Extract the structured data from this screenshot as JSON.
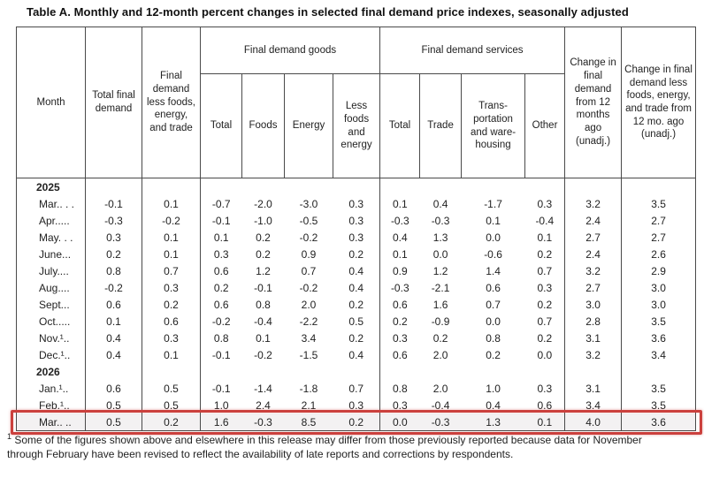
{
  "title": "Table A. Monthly and 12-month percent changes in selected final demand price indexes, seasonally adjusted",
  "table": {
    "header": {
      "month": "Month",
      "total_final_demand": "Total final demand",
      "less_foods_energy_trade": "Final demand less foods, energy, and trade",
      "goods_group": "Final demand goods",
      "services_group": "Final demand services",
      "goods_cols": [
        "Total",
        "Foods",
        "Energy",
        "Less foods and energy"
      ],
      "services_cols": [
        "Total",
        "Trade",
        "Trans­portation and ware­housing",
        "Other"
      ],
      "change_12mo": "Change in final demand from 12 months ago (unadj.)",
      "change_12mo_less": "Change in final demand less foods, energy, and trade from 12 mo. ago (unadj.)"
    },
    "rows": [
      {
        "type": "year",
        "label": "2025"
      },
      {
        "type": "data",
        "month": "Mar.. . .",
        "values": [
          "-0.1",
          "0.1",
          "-0.7",
          "-2.0",
          "-3.0",
          "0.3",
          "0.1",
          "0.4",
          "-1.7",
          "0.3",
          "3.2",
          "3.5"
        ]
      },
      {
        "type": "data",
        "month": "Apr.....",
        "values": [
          "-0.3",
          "-0.2",
          "-0.1",
          "-1.0",
          "-0.5",
          "0.3",
          "-0.3",
          "-0.3",
          "0.1",
          "-0.4",
          "2.4",
          "2.7"
        ]
      },
      {
        "type": "data",
        "month": "May. . .",
        "values": [
          "0.3",
          "0.1",
          "0.1",
          "0.2",
          "-0.2",
          "0.3",
          "0.4",
          "1.3",
          "0.0",
          "0.1",
          "2.7",
          "2.7"
        ]
      },
      {
        "type": "data",
        "month": "June...",
        "values": [
          "0.2",
          "0.1",
          "0.3",
          "0.2",
          "0.9",
          "0.2",
          "0.1",
          "0.0",
          "-0.6",
          "0.2",
          "2.4",
          "2.6"
        ]
      },
      {
        "type": "data",
        "month": "July....",
        "values": [
          "0.8",
          "0.7",
          "0.6",
          "1.2",
          "0.7",
          "0.4",
          "0.9",
          "1.2",
          "1.4",
          "0.7",
          "3.2",
          "2.9"
        ]
      },
      {
        "type": "data",
        "month": "Aug....",
        "values": [
          "-0.2",
          "0.3",
          "0.2",
          "-0.1",
          "-0.2",
          "0.4",
          "-0.3",
          "-2.1",
          "0.6",
          "0.3",
          "2.7",
          "3.0"
        ]
      },
      {
        "type": "data",
        "month": "Sept...",
        "values": [
          "0.6",
          "0.2",
          "0.6",
          "0.8",
          "2.0",
          "0.2",
          "0.6",
          "1.6",
          "0.7",
          "0.2",
          "3.0",
          "3.0"
        ]
      },
      {
        "type": "data",
        "month": "Oct.....",
        "values": [
          "0.1",
          "0.6",
          "-0.2",
          "-0.4",
          "-2.2",
          "0.5",
          "0.2",
          "-0.9",
          "0.0",
          "0.7",
          "2.8",
          "3.5"
        ]
      },
      {
        "type": "data",
        "month": "Nov.¹..",
        "values": [
          "0.4",
          "0.3",
          "0.8",
          "0.1",
          "3.4",
          "0.2",
          "0.3",
          "0.2",
          "0.8",
          "0.2",
          "3.1",
          "3.6"
        ]
      },
      {
        "type": "data",
        "month": "Dec.¹..",
        "values": [
          "0.4",
          "0.1",
          "-0.1",
          "-0.2",
          "-1.5",
          "0.4",
          "0.6",
          "2.0",
          "0.2",
          "0.0",
          "3.2",
          "3.4"
        ]
      },
      {
        "type": "year",
        "label": "2026"
      },
      {
        "type": "data",
        "month": "Jan.¹..",
        "values": [
          "0.6",
          "0.5",
          "-0.1",
          "-1.4",
          "-1.8",
          "0.7",
          "0.8",
          "2.0",
          "1.0",
          "0.3",
          "3.1",
          "3.5"
        ]
      },
      {
        "type": "data",
        "month": "Feb.¹..",
        "values": [
          "0.5",
          "0.5",
          "1.0",
          "2.4",
          "2.1",
          "0.3",
          "0.3",
          "-0.4",
          "0.4",
          "0.6",
          "3.4",
          "3.5"
        ]
      },
      {
        "type": "data",
        "month": "Mar.. ..",
        "values": [
          "0.5",
          "0.2",
          "1.6",
          "-0.3",
          "8.5",
          "0.2",
          "0.0",
          "-0.3",
          "1.3",
          "0.1",
          "4.0",
          "3.6"
        ],
        "highlight": true
      }
    ]
  },
  "highlight_color": "#cb403d",
  "footnote": {
    "marker": "1",
    "text": "Some of the figures shown above and elsewhere in this release may differ from those previously reported because data for November through February have been revised to reflect the availability of late reports and corrections by respondents."
  }
}
